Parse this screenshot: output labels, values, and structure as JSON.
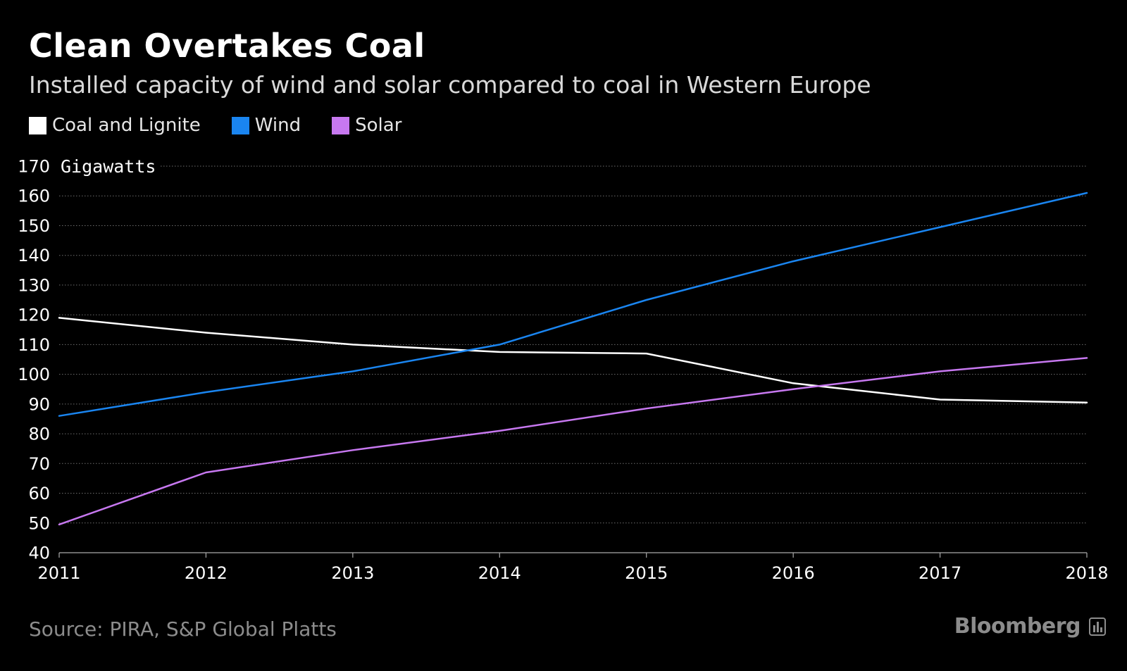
{
  "title": "Clean Overtakes Coal",
  "subtitle": "Installed capacity of wind and solar compared to coal in Western Europe",
  "source": "Source: PIRA, S&P Global Platts",
  "brand": "Bloomberg",
  "brand_icon": "bloomberg-terminal-icon",
  "chart_data": {
    "type": "line",
    "x": [
      "2011",
      "2012",
      "2013",
      "2014",
      "2015",
      "2016",
      "2017",
      "2018"
    ],
    "ylabel": "Gigawatts",
    "ylim": [
      40,
      170
    ],
    "yticks": [
      "40",
      "50",
      "60",
      "70",
      "80",
      "90",
      "100",
      "110",
      "120",
      "130",
      "140",
      "150",
      "160",
      "170"
    ],
    "grid": "horizontal-dotted",
    "legend_position": "top-left",
    "series": [
      {
        "name": "Coal and Lignite",
        "color": "#ffffff",
        "values": [
          119,
          114,
          110,
          107.5,
          107,
          97,
          91.5,
          90.5
        ]
      },
      {
        "name": "Wind",
        "color": "#1a85f0",
        "values": [
          86,
          94,
          101,
          110,
          125,
          138,
          149.5,
          161
        ]
      },
      {
        "name": "Solar",
        "color": "#c778f0",
        "values": [
          49.5,
          67,
          74.5,
          81,
          88.5,
          95,
          101,
          105.5
        ]
      }
    ]
  }
}
